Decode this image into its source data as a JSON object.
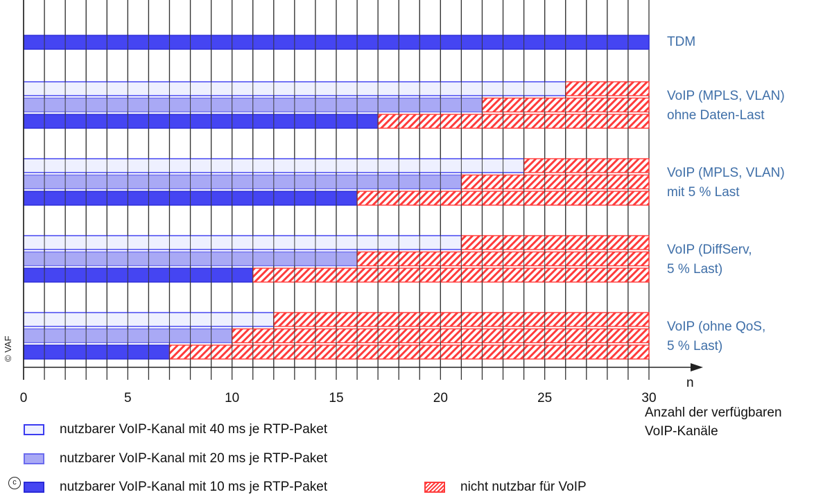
{
  "chart_data": {
    "type": "bar",
    "orientation": "horizontal",
    "stacked": true,
    "xlim": [
      0,
      30
    ],
    "x_ticks": [
      0,
      5,
      10,
      15,
      20,
      25,
      30
    ],
    "x_minor_step": 1,
    "xlabel_symbol": "n",
    "xlabel_lines": [
      "Anzahl der verfügbaren",
      "VoIP-Kanäle"
    ],
    "total": 30,
    "colors": {
      "ms40": "#eef0ff",
      "ms20": "#a9a9f5",
      "ms10": "#4545f2",
      "unusable": "#ff3b3b"
    },
    "groups": [
      {
        "label_lines": [
          "TDM"
        ],
        "bars": [
          {
            "series": "ms10",
            "value": 30
          }
        ]
      },
      {
        "label_lines": [
          "VoIP (MPLS, VLAN)",
          "ohne Daten-Last"
        ],
        "bars": [
          {
            "series": "ms40",
            "value": 26
          },
          {
            "series": "ms20",
            "value": 22
          },
          {
            "series": "ms10",
            "value": 17
          }
        ]
      },
      {
        "label_lines": [
          "VoIP (MPLS, VLAN)",
          "mit 5 % Last"
        ],
        "bars": [
          {
            "series": "ms40",
            "value": 24
          },
          {
            "series": "ms20",
            "value": 21
          },
          {
            "series": "ms10",
            "value": 16
          }
        ]
      },
      {
        "label_lines": [
          "VoIP (DiffServ,",
          "5 % Last)"
        ],
        "bars": [
          {
            "series": "ms40",
            "value": 21
          },
          {
            "series": "ms20",
            "value": 16
          },
          {
            "series": "ms10",
            "value": 11
          }
        ]
      },
      {
        "label_lines": [
          "VoIP (ohne QoS,",
          "5 % Last)"
        ],
        "bars": [
          {
            "series": "ms40",
            "value": 12
          },
          {
            "series": "ms20",
            "value": 10
          },
          {
            "series": "ms10",
            "value": 7
          }
        ]
      }
    ],
    "legend": [
      {
        "key": "ms40",
        "label": "nutzbarer VoIP-Kanal mit 40 ms je RTP-Paket"
      },
      {
        "key": "ms20",
        "label": "nutzbarer VoIP-Kanal mit 20 ms je RTP-Paket"
      },
      {
        "key": "ms10",
        "label": "nutzbarer VoIP-Kanal mit 10 ms je RTP-Paket"
      },
      {
        "key": "unusable",
        "label": "nicht nutzbar für VoIP"
      }
    ],
    "copyright": "© VAF",
    "grid": true
  }
}
